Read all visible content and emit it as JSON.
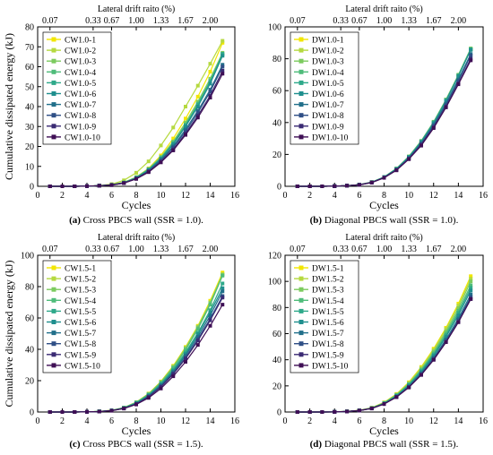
{
  "figure": {
    "top_axis_label": "Lateral drift raito (%)",
    "top_ticks": [
      "0.07",
      "0.33",
      "0.67",
      "1.00",
      "1.33",
      "1.67",
      "2.00"
    ],
    "top_tick_cycles": [
      1,
      4.5,
      6,
      8,
      10,
      12,
      14
    ],
    "series_colors": [
      "#f2e600",
      "#b5d93f",
      "#7ccb5f",
      "#4fbc7a",
      "#2ea98a",
      "#1f8f8e",
      "#216f8a",
      "#2f4f86",
      "#3a2a73",
      "#3f0f55"
    ]
  },
  "chart_data": [
    {
      "type": "line",
      "panel_tag": "(a)",
      "caption": "Cross PBCS wall (SSR = 1.0).",
      "xlabel": "Cycles",
      "ylabel": "Cumulative dissipated energy (kJ)",
      "top_xlabel": "Lateral drift raito (%)",
      "xlim": [
        0,
        16
      ],
      "ylim": [
        0,
        80
      ],
      "xticks": [
        0,
        2,
        4,
        6,
        8,
        10,
        12,
        14,
        16
      ],
      "yticks": [
        0,
        10,
        20,
        30,
        40,
        50,
        60,
        70,
        80
      ],
      "legend_position": "top-left",
      "x": [
        1,
        2,
        3,
        4,
        5,
        6,
        7,
        8,
        9,
        10,
        11,
        12,
        13,
        14,
        15
      ],
      "series": [
        {
          "name": "CW1.0-1",
          "values": [
            0,
            0,
            0,
            0.1,
            0.3,
            0.8,
            2.0,
            4.6,
            9.0,
            15.5,
            24.0,
            34.0,
            45.0,
            57.5,
            72.0
          ]
        },
        {
          "name": "CW1.0-2",
          "values": [
            0,
            0,
            0,
            0.1,
            0.4,
            1.1,
            3.0,
            6.8,
            12.5,
            20.5,
            29.5,
            40.0,
            50.5,
            61.5,
            73.0
          ]
        },
        {
          "name": "CW1.0-3",
          "values": [
            0,
            0,
            0,
            0.1,
            0.3,
            0.8,
            2.0,
            4.6,
            8.8,
            14.8,
            22.5,
            32.0,
            42.5,
            54.0,
            67.0
          ]
        },
        {
          "name": "CW1.0-4",
          "values": [
            0,
            0,
            0,
            0.1,
            0.3,
            0.7,
            1.9,
            4.4,
            8.5,
            14.2,
            21.8,
            31.0,
            41.5,
            53.0,
            66.0
          ]
        },
        {
          "name": "CW1.0-5",
          "values": [
            0,
            0,
            0,
            0.1,
            0.3,
            0.7,
            1.8,
            4.3,
            8.3,
            14.0,
            21.5,
            30.5,
            41.0,
            52.5,
            66.5
          ]
        },
        {
          "name": "CW1.0-6",
          "values": [
            0,
            0,
            0,
            0.1,
            0.3,
            0.7,
            1.8,
            4.2,
            8.2,
            13.8,
            21.0,
            30.0,
            40.0,
            51.5,
            65.5
          ]
        },
        {
          "name": "CW1.0-7",
          "values": [
            0,
            0,
            0,
            0.1,
            0.3,
            0.7,
            1.7,
            4.0,
            7.8,
            13.2,
            20.0,
            28.5,
            38.0,
            48.5,
            61.0
          ]
        },
        {
          "name": "CW1.0-8",
          "values": [
            0,
            0,
            0,
            0.1,
            0.3,
            0.7,
            1.7,
            3.9,
            7.6,
            12.8,
            19.5,
            27.5,
            37.0,
            47.5,
            60.0
          ]
        },
        {
          "name": "CW1.0-9",
          "values": [
            0,
            0,
            0,
            0.1,
            0.3,
            0.6,
            1.6,
            3.8,
            7.3,
            12.3,
            18.5,
            26.5,
            35.5,
            45.5,
            58.0
          ]
        },
        {
          "name": "CW1.0-10",
          "values": [
            0,
            0,
            0,
            0.1,
            0.3,
            0.6,
            1.6,
            3.7,
            7.1,
            12.0,
            18.0,
            25.8,
            34.5,
            44.5,
            56.5
          ]
        }
      ]
    },
    {
      "type": "line",
      "panel_tag": "(b)",
      "caption": "Diagonal PBCS wall (SSR = 1.0).",
      "xlabel": "Cycles",
      "ylabel": "",
      "top_xlabel": "Lateral drift raito (%)",
      "xlim": [
        0,
        16
      ],
      "ylim": [
        0,
        100
      ],
      "xticks": [
        0,
        2,
        4,
        6,
        8,
        10,
        12,
        14,
        16
      ],
      "yticks": [
        0,
        20,
        40,
        60,
        80,
        100
      ],
      "legend_position": "top-left",
      "x": [
        1,
        2,
        3,
        4,
        5,
        6,
        7,
        8,
        9,
        10,
        11,
        12,
        13,
        14,
        15
      ],
      "series": [
        {
          "name": "DW1.0-1",
          "values": [
            0,
            0,
            0,
            0.1,
            0.4,
            1.0,
            2.6,
            5.8,
            11.0,
            18.5,
            28.0,
            40.0,
            54.0,
            69.5,
            86.0
          ]
        },
        {
          "name": "DW1.0-2",
          "values": [
            0,
            0,
            0,
            0.1,
            0.4,
            1.0,
            2.6,
            5.8,
            11.0,
            18.5,
            28.0,
            40.0,
            54.0,
            69.5,
            86.0
          ]
        },
        {
          "name": "DW1.0-3",
          "values": [
            0,
            0,
            0,
            0.1,
            0.4,
            1.0,
            2.6,
            5.9,
            11.2,
            18.8,
            28.5,
            40.5,
            54.5,
            70.0,
            86.5
          ]
        },
        {
          "name": "DW1.0-4",
          "values": [
            0,
            0,
            0,
            0.1,
            0.4,
            1.0,
            2.6,
            5.8,
            11.0,
            18.5,
            28.2,
            40.2,
            54.0,
            69.5,
            86.0
          ]
        },
        {
          "name": "DW1.0-5",
          "values": [
            0,
            0,
            0,
            0.1,
            0.4,
            1.0,
            2.6,
            5.8,
            11.0,
            18.5,
            28.0,
            40.0,
            54.0,
            69.5,
            86.0
          ]
        },
        {
          "name": "DW1.0-6",
          "values": [
            0,
            0,
            0,
            0.1,
            0.4,
            1.0,
            2.5,
            5.7,
            10.8,
            18.2,
            27.8,
            39.5,
            53.5,
            69.0,
            85.5
          ]
        },
        {
          "name": "DW1.0-7",
          "values": [
            0,
            0,
            0,
            0.1,
            0.4,
            1.0,
            2.5,
            5.6,
            10.6,
            17.8,
            27.0,
            38.5,
            52.0,
            67.0,
            83.0
          ]
        },
        {
          "name": "DW1.0-8",
          "values": [
            0,
            0,
            0,
            0.1,
            0.4,
            0.9,
            2.4,
            5.5,
            10.4,
            17.5,
            26.5,
            38.0,
            51.0,
            66.0,
            82.0
          ]
        },
        {
          "name": "DW1.0-9",
          "values": [
            0,
            0,
            0,
            0.1,
            0.4,
            0.9,
            2.4,
            5.4,
            10.2,
            17.2,
            26.0,
            37.0,
            50.0,
            64.5,
            80.0
          ]
        },
        {
          "name": "DW1.0-10",
          "values": [
            0,
            0,
            0,
            0.1,
            0.4,
            0.9,
            2.3,
            5.3,
            10.0,
            17.0,
            25.5,
            36.5,
            49.5,
            64.0,
            79.0
          ]
        }
      ]
    },
    {
      "type": "line",
      "panel_tag": "(c)",
      "caption": "Cross PBCS wall (SSR = 1.5).",
      "xlabel": "Cycles",
      "ylabel": "Cumulative dissipated energy (kJ)",
      "top_xlabel": "Lateral drift raito (%)",
      "xlim": [
        0,
        16
      ],
      "ylim": [
        0,
        100
      ],
      "xticks": [
        0,
        2,
        4,
        6,
        8,
        10,
        12,
        14,
        16
      ],
      "yticks": [
        0,
        20,
        40,
        60,
        80,
        100
      ],
      "legend_position": "top-left",
      "x": [
        1,
        2,
        3,
        4,
        5,
        6,
        7,
        8,
        9,
        10,
        11,
        12,
        13,
        14,
        15
      ],
      "series": [
        {
          "name": "CW1.5-1",
          "values": [
            0,
            0,
            0,
            0.1,
            0.4,
            1.1,
            2.8,
            6.3,
            11.8,
            19.5,
            29.5,
            41.5,
            55.0,
            71.0,
            89.0
          ]
        },
        {
          "name": "CW1.5-2",
          "values": [
            0,
            0,
            0,
            0.1,
            0.4,
            1.1,
            2.8,
            6.2,
            11.6,
            19.2,
            29.0,
            41.0,
            54.5,
            70.0,
            88.0
          ]
        },
        {
          "name": "CW1.5-3",
          "values": [
            0,
            0,
            0,
            0.1,
            0.4,
            1.1,
            2.8,
            6.2,
            11.5,
            19.0,
            28.8,
            40.5,
            54.0,
            69.5,
            87.5
          ]
        },
        {
          "name": "CW1.5-4",
          "values": [
            0,
            0,
            0,
            0.1,
            0.4,
            1.0,
            2.7,
            6.0,
            11.2,
            18.6,
            28.0,
            39.5,
            53.0,
            68.5,
            87.0
          ]
        },
        {
          "name": "CW1.5-5",
          "values": [
            0,
            0,
            0,
            0.1,
            0.4,
            1.0,
            2.6,
            5.8,
            10.8,
            18.0,
            27.0,
            38.0,
            50.5,
            65.0,
            82.0
          ]
        },
        {
          "name": "CW1.5-6",
          "values": [
            0,
            0,
            0,
            0.1,
            0.4,
            1.0,
            2.5,
            5.6,
            10.5,
            17.4,
            26.2,
            37.0,
            49.5,
            63.5,
            79.0
          ]
        },
        {
          "name": "CW1.5-7",
          "values": [
            0,
            0,
            0,
            0.1,
            0.3,
            0.9,
            2.4,
            5.4,
            10.2,
            17.0,
            25.5,
            36.0,
            48.0,
            61.5,
            77.0
          ]
        },
        {
          "name": "CW1.5-8",
          "values": [
            0,
            0,
            0,
            0.1,
            0.3,
            0.9,
            2.3,
            5.2,
            9.8,
            16.4,
            24.7,
            34.8,
            46.5,
            59.5,
            74.0
          ]
        },
        {
          "name": "CW1.5-9",
          "values": [
            0,
            0,
            0,
            0.1,
            0.3,
            0.9,
            2.3,
            5.1,
            9.6,
            16.0,
            24.2,
            34.0,
            45.5,
            58.5,
            73.0
          ]
        },
        {
          "name": "CW1.5-10",
          "values": [
            0,
            0,
            0,
            0.1,
            0.3,
            0.8,
            2.2,
            4.8,
            9.0,
            15.0,
            22.8,
            32.0,
            42.8,
            55.0,
            68.5
          ]
        }
      ]
    },
    {
      "type": "line",
      "panel_tag": "(d)",
      "caption": "Diagonal PBCS wall (SSR = 1.5).",
      "xlabel": "Cycles",
      "ylabel": "",
      "top_xlabel": "Lateral drift raito (%)",
      "xlim": [
        0,
        16
      ],
      "ylim": [
        0,
        120
      ],
      "xticks": [
        0,
        2,
        4,
        6,
        8,
        10,
        12,
        14,
        16
      ],
      "yticks": [
        0,
        20,
        40,
        60,
        80,
        100,
        120
      ],
      "legend_position": "top-left",
      "x": [
        1,
        2,
        3,
        4,
        5,
        6,
        7,
        8,
        9,
        10,
        11,
        12,
        13,
        14,
        15
      ],
      "series": [
        {
          "name": "DW1.5-1",
          "values": [
            0,
            0,
            0,
            0.1,
            0.5,
            1.3,
            3.3,
            7.4,
            13.8,
            22.8,
            34.5,
            48.5,
            64.5,
            83.0,
            104.0
          ]
        },
        {
          "name": "DW1.5-2",
          "values": [
            0,
            0,
            0,
            0.1,
            0.5,
            1.3,
            3.2,
            7.2,
            13.5,
            22.3,
            33.8,
            47.5,
            63.5,
            81.5,
            102.0
          ]
        },
        {
          "name": "DW1.5-3",
          "values": [
            0,
            0,
            0,
            0.1,
            0.5,
            1.2,
            3.1,
            7.0,
            13.1,
            21.7,
            32.8,
            46.2,
            61.8,
            79.5,
            100.0
          ]
        },
        {
          "name": "DW1.5-4",
          "values": [
            0,
            0,
            0,
            0.1,
            0.5,
            1.2,
            3.0,
            6.8,
            12.8,
            21.2,
            32.0,
            45.0,
            60.2,
            77.5,
            97.0
          ]
        },
        {
          "name": "DW1.5-5",
          "values": [
            0,
            0,
            0,
            0.1,
            0.4,
            1.2,
            3.0,
            6.7,
            12.5,
            20.7,
            31.3,
            44.0,
            58.8,
            75.8,
            95.0
          ]
        },
        {
          "name": "DW1.5-6",
          "values": [
            0,
            0,
            0,
            0.1,
            0.4,
            1.1,
            2.9,
            6.5,
            12.2,
            20.2,
            30.5,
            43.0,
            57.5,
            74.0,
            93.0
          ]
        },
        {
          "name": "DW1.5-7",
          "values": [
            0,
            0,
            0,
            0.1,
            0.4,
            1.1,
            2.8,
            6.3,
            11.8,
            19.6,
            29.6,
            41.6,
            55.6,
            71.5,
            90.0
          ]
        },
        {
          "name": "DW1.5-8",
          "values": [
            0,
            0,
            0,
            0.1,
            0.4,
            1.1,
            2.8,
            6.2,
            11.6,
            19.2,
            29.0,
            40.8,
            54.5,
            70.2,
            88.0
          ]
        },
        {
          "name": "DW1.5-9",
          "values": [
            0,
            0,
            0,
            0.1,
            0.4,
            1.1,
            2.7,
            6.1,
            11.4,
            18.8,
            28.4,
            40.0,
            53.5,
            68.8,
            86.5
          ]
        },
        {
          "name": "DW1.5-10",
          "values": [
            0,
            0,
            0,
            0.1,
            0.4,
            1.1,
            2.7,
            6.1,
            11.4,
            18.8,
            28.4,
            40.0,
            53.5,
            68.8,
            86.5
          ]
        }
      ]
    }
  ]
}
